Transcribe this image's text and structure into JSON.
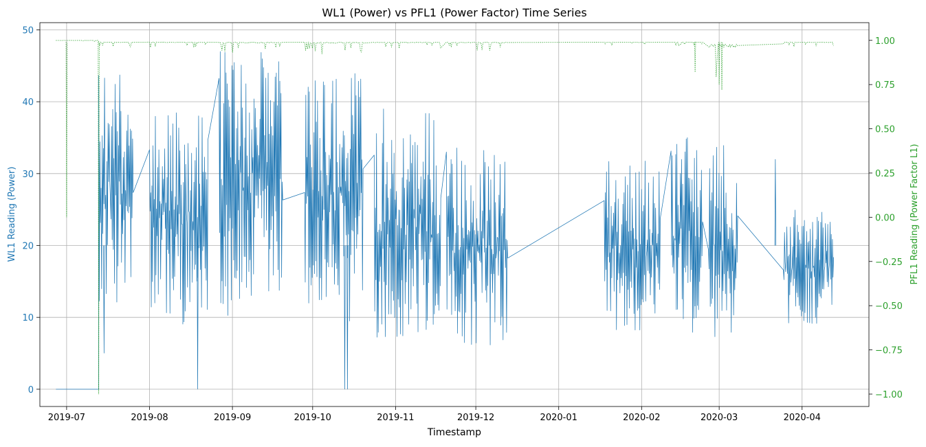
{
  "chart_data": {
    "type": "line",
    "title": "WL1 (Power) vs PFL1 (Power Factor) Time Series",
    "xlabel": "Timestamp",
    "ylabel_left": "WL1 Reading (Power)",
    "ylabel_right": "PFL1 Reading (Power Factor L1)",
    "x_tick_labels": [
      "2019-07",
      "2019-08",
      "2019-09",
      "2019-10",
      "2019-11",
      "2019-12",
      "2020-01",
      "2020-02",
      "2020-03",
      "2020-04"
    ],
    "x_tick_dates": [
      "2019-07-01",
      "2019-08-01",
      "2019-09-01",
      "2019-10-01",
      "2019-11-01",
      "2019-12-01",
      "2020-01-01",
      "2020-02-01",
      "2020-03-01",
      "2020-04-01"
    ],
    "xlim": [
      "2019-06-21",
      "2020-04-26"
    ],
    "ylim_left": [
      -2.4,
      51
    ],
    "ylim_right": [
      -1.07,
      1.1
    ],
    "y_ticks_left": [
      0,
      10,
      20,
      30,
      40,
      50
    ],
    "y_ticks_right": [
      -1.0,
      -0.75,
      -0.5,
      -0.25,
      0.0,
      0.25,
      0.5,
      0.75,
      1.0
    ],
    "y_tick_labels_right": [
      "−1.00",
      "−0.75",
      "−0.50",
      "−0.25",
      "0.00",
      "0.25",
      "0.50",
      "0.75",
      "1.00"
    ],
    "grid": true,
    "colors": {
      "left_axis": "#1f77b4",
      "right_axis": "#2ca02c",
      "grid": "#b0b0b0"
    },
    "series": [
      {
        "axis": "left",
        "style": "solid",
        "color": "#1f77b4",
        "segments": [
          {
            "start": "2019-06-27",
            "end": "2019-07-13",
            "low": 0,
            "high": 0
          },
          {
            "start": "2019-07-13",
            "end": "2019-07-26",
            "low": 12,
            "high": 44
          },
          {
            "start": "2019-08-01",
            "end": "2019-08-23",
            "low": 9,
            "high": 40
          },
          {
            "start": "2019-08-27",
            "end": "2019-09-20",
            "low": 10,
            "high": 47
          },
          {
            "start": "2019-09-28",
            "end": "2019-10-20",
            "low": 9,
            "high": 44
          },
          {
            "start": "2019-10-24",
            "end": "2019-11-18",
            "low": 7,
            "high": 39
          },
          {
            "start": "2019-11-20",
            "end": "2019-12-13",
            "low": 6,
            "high": 34
          },
          {
            "start": "2020-01-18",
            "end": "2020-02-08",
            "low": 7,
            "high": 32
          },
          {
            "start": "2020-02-12",
            "end": "2020-02-24",
            "low": 7,
            "high": 35
          },
          {
            "start": "2020-02-26",
            "end": "2020-03-08",
            "low": 7,
            "high": 34
          },
          {
            "start": "2020-03-25",
            "end": "2020-04-13",
            "low": 9,
            "high": 25
          }
        ],
        "spikes": [
          {
            "date": "2019-07-15",
            "value": 5
          },
          {
            "date": "2019-08-19",
            "value": 0
          },
          {
            "date": "2019-10-13",
            "value": 0
          },
          {
            "date": "2019-10-14",
            "value": 0
          },
          {
            "date": "2020-03-22",
            "value": 32
          }
        ]
      },
      {
        "axis": "right",
        "style": "dotted",
        "color": "#2ca02c",
        "segments": [
          {
            "start": "2019-06-27",
            "end": "2019-07-13",
            "low": 0.99,
            "high": 1.0
          },
          {
            "start": "2019-07-13",
            "end": "2019-07-26",
            "low": 0.96,
            "high": 0.99
          },
          {
            "start": "2019-08-01",
            "end": "2019-08-23",
            "low": 0.96,
            "high": 0.99
          },
          {
            "start": "2019-08-27",
            "end": "2019-09-20",
            "low": 0.93,
            "high": 0.99
          },
          {
            "start": "2019-09-28",
            "end": "2019-10-20",
            "low": 0.91,
            "high": 0.99
          },
          {
            "start": "2019-10-24",
            "end": "2019-11-18",
            "low": 0.95,
            "high": 0.99
          },
          {
            "start": "2019-11-20",
            "end": "2019-12-13",
            "low": 0.94,
            "high": 0.99
          },
          {
            "start": "2020-01-18",
            "end": "2020-02-08",
            "low": 0.97,
            "high": 0.99
          },
          {
            "start": "2020-02-12",
            "end": "2020-02-24",
            "low": 0.97,
            "high": 0.99
          },
          {
            "start": "2020-02-26",
            "end": "2020-03-08",
            "low": 0.72,
            "high": 0.98
          },
          {
            "start": "2020-03-25",
            "end": "2020-04-13",
            "low": 0.96,
            "high": 0.99
          }
        ],
        "spikes": [
          {
            "date": "2019-07-01",
            "value": 0.0
          },
          {
            "date": "2019-07-13",
            "value": -1.0
          },
          {
            "date": "2020-02-21",
            "value": 0.82
          },
          {
            "date": "2020-03-01",
            "value": 0.75
          },
          {
            "date": "2020-03-02",
            "value": 0.72
          }
        ]
      }
    ]
  }
}
